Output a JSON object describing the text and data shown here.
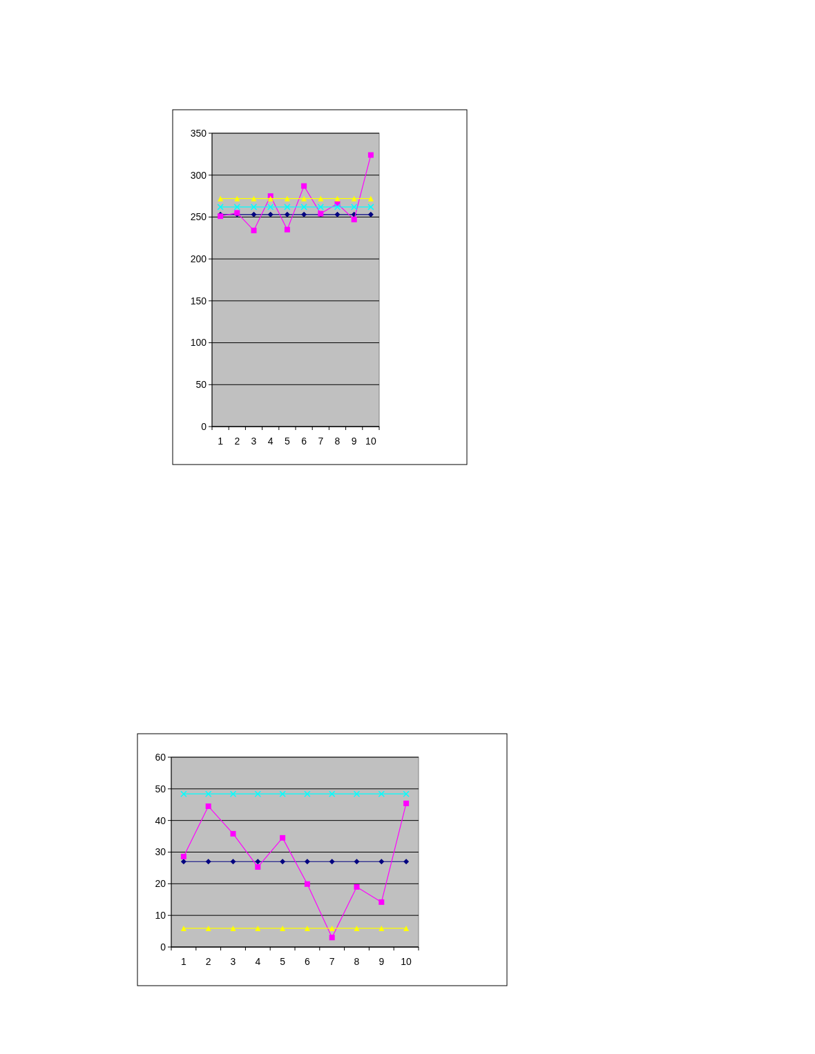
{
  "chart_data": [
    {
      "type": "line",
      "categories": [
        "1",
        "2",
        "3",
        "4",
        "5",
        "6",
        "7",
        "8",
        "9",
        "10"
      ],
      "ylim": [
        0,
        350
      ],
      "yticks": [
        0,
        50,
        100,
        150,
        200,
        250,
        300,
        350
      ],
      "grid": "y",
      "series": [
        {
          "color": "#000080",
          "marker": "diamond",
          "values": [
            253,
            253,
            253,
            253,
            253,
            253,
            253,
            253,
            253,
            253
          ]
        },
        {
          "color": "#ff00ff",
          "marker": "square",
          "values": [
            251,
            255,
            234,
            275,
            235,
            287,
            254,
            266,
            247,
            324
          ]
        },
        {
          "color": "#ffff00",
          "marker": "triangle",
          "values": [
            272,
            272,
            272,
            272,
            272,
            272,
            272,
            272,
            272,
            272
          ]
        },
        {
          "color": "#00ffff",
          "marker": "cross",
          "values": [
            262,
            262,
            262,
            262,
            262,
            262,
            262,
            262,
            262,
            262
          ]
        }
      ]
    },
    {
      "type": "line",
      "categories": [
        "1",
        "2",
        "3",
        "4",
        "5",
        "6",
        "7",
        "8",
        "9",
        "10"
      ],
      "ylim": [
        0,
        60
      ],
      "yticks": [
        0,
        10,
        20,
        30,
        40,
        50,
        60
      ],
      "grid": "y",
      "series": [
        {
          "color": "#000080",
          "marker": "diamond",
          "values": [
            27,
            27,
            27,
            27,
            27,
            27,
            27,
            27,
            27,
            27
          ]
        },
        {
          "color": "#ff00ff",
          "marker": "square",
          "values": [
            28.6,
            44.5,
            35.8,
            25.3,
            34.5,
            19.9,
            3,
            19,
            14.2,
            45.4
          ]
        },
        {
          "color": "#ffff00",
          "marker": "triangle",
          "values": [
            5.9,
            5.9,
            5.9,
            5.9,
            5.9,
            5.9,
            5.9,
            5.9,
            5.9,
            5.9
          ]
        },
        {
          "color": "#00ffff",
          "marker": "cross",
          "values": [
            48.4,
            48.4,
            48.4,
            48.4,
            48.4,
            48.4,
            48.4,
            48.4,
            48.4,
            48.4
          ]
        }
      ]
    }
  ]
}
